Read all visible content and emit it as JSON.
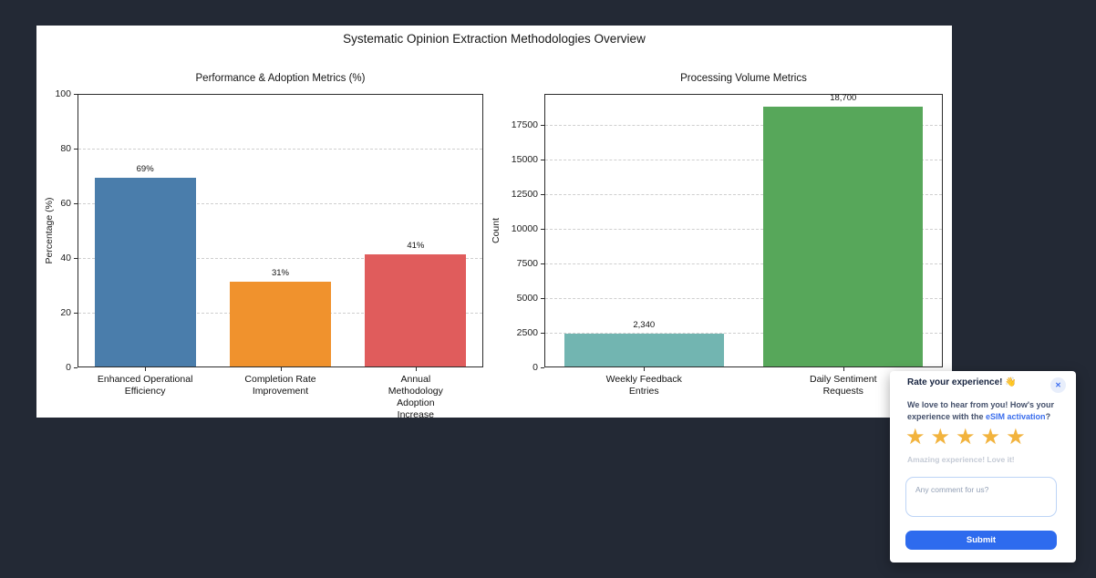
{
  "background_color": "#232935",
  "figure": {
    "title": "Systematic Opinion Extraction Methodologies Overview",
    "bg_color": "#ffffff"
  },
  "chart_data": [
    {
      "type": "bar",
      "title": "Performance & Adoption Metrics (%)",
      "xlabel": "",
      "ylabel": "Percentage (%)",
      "categories": [
        "Enhanced Operational\nEfficiency",
        "Completion Rate\nImprovement",
        "Annual Methodology\nAdoption Increase"
      ],
      "values": [
        69,
        31,
        41
      ],
      "bar_labels": [
        "69%",
        "31%",
        "41%"
      ],
      "colors": [
        "#4a7dab",
        "#f0922d",
        "#e05c5c"
      ],
      "ylim": [
        0,
        100
      ],
      "yticks": [
        0,
        20,
        40,
        60,
        80,
        100
      ],
      "grid": "dashed-horizontal",
      "legend": "none",
      "bar_frac": 0.75
    },
    {
      "type": "bar",
      "title": "Processing Volume Metrics",
      "xlabel": "",
      "ylabel": "Count",
      "categories": [
        "Weekly Feedback\nEntries",
        "Daily Sentiment\nRequests"
      ],
      "values": [
        2340,
        18700
      ],
      "bar_labels": [
        "2,340",
        "18,700"
      ],
      "colors": [
        "#72b5b1",
        "#57a75a"
      ],
      "ylim": [
        0,
        19700
      ],
      "yticks": [
        0,
        2500,
        5000,
        7500,
        10000,
        12500,
        15000,
        17500
      ],
      "grid": "dashed-horizontal",
      "legend": "none",
      "bar_frac": 0.8
    }
  ],
  "widget": {
    "title": "Rate your experience! 👋",
    "close_icon": "✕",
    "body_prefix": "We love to hear from you! How's your experience with the ",
    "body_link": "eSIM activation",
    "body_suffix": "?",
    "stars": 5,
    "star_icon": "★",
    "rating_caption": "Amazing experience! Love it!",
    "comment_placeholder": "Any comment for us?",
    "submit_label": "Submit",
    "colors": {
      "accent_blue": "#2e6bee",
      "link_blue": "#3a6ded",
      "star_gold": "#f2b33d"
    }
  }
}
